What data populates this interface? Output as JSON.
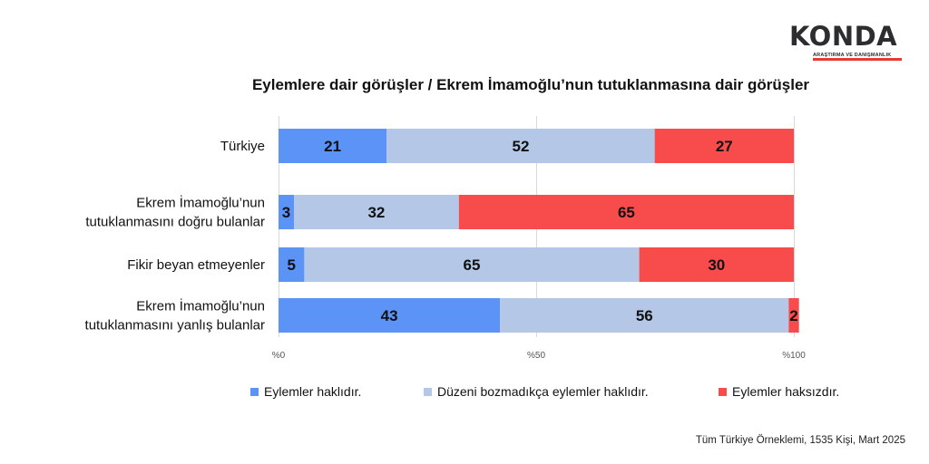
{
  "logo": {
    "word": "KONDA",
    "tagline": "ARAŞTIRMA VE DANIŞMANLIK"
  },
  "source": "Tüm Türkiye Örneklemi, 1535 Kişi, Mart 2025",
  "colors": {
    "series": [
      "#5b93f7",
      "#b4c7e7",
      "#f84c4c"
    ],
    "grid": "#d9d9d9"
  },
  "chart_data": {
    "type": "bar",
    "orientation": "horizontal",
    "stacked": true,
    "title": "Eylemlere dair görüşler / Ekrem İmamoğlu’nun tutuklanmasına dair görüşler",
    "categories": [
      [
        "Türkiye"
      ],
      [
        "Ekrem İmamoğlu’nun",
        "tutuklanmasını doğru bulanlar"
      ],
      [
        "Fikir beyan etmeyenler"
      ],
      [
        "Ekrem İmamoğlu’nun",
        "tutuklanmasını yanlış bulanlar"
      ]
    ],
    "series": [
      {
        "name": "Eylemler haklıdır.",
        "values": [
          21,
          3,
          5,
          43
        ]
      },
      {
        "name": "Düzeni bozmadıkça eylemler haklıdır.",
        "values": [
          52,
          32,
          65,
          56
        ]
      },
      {
        "name": "Eylemler haksızdır.",
        "values": [
          27,
          65,
          30,
          2
        ]
      }
    ],
    "xlim": [
      0,
      100
    ],
    "xticks": [
      "%0",
      "%50",
      "%100"
    ],
    "grid": true,
    "legend": "bottom"
  }
}
